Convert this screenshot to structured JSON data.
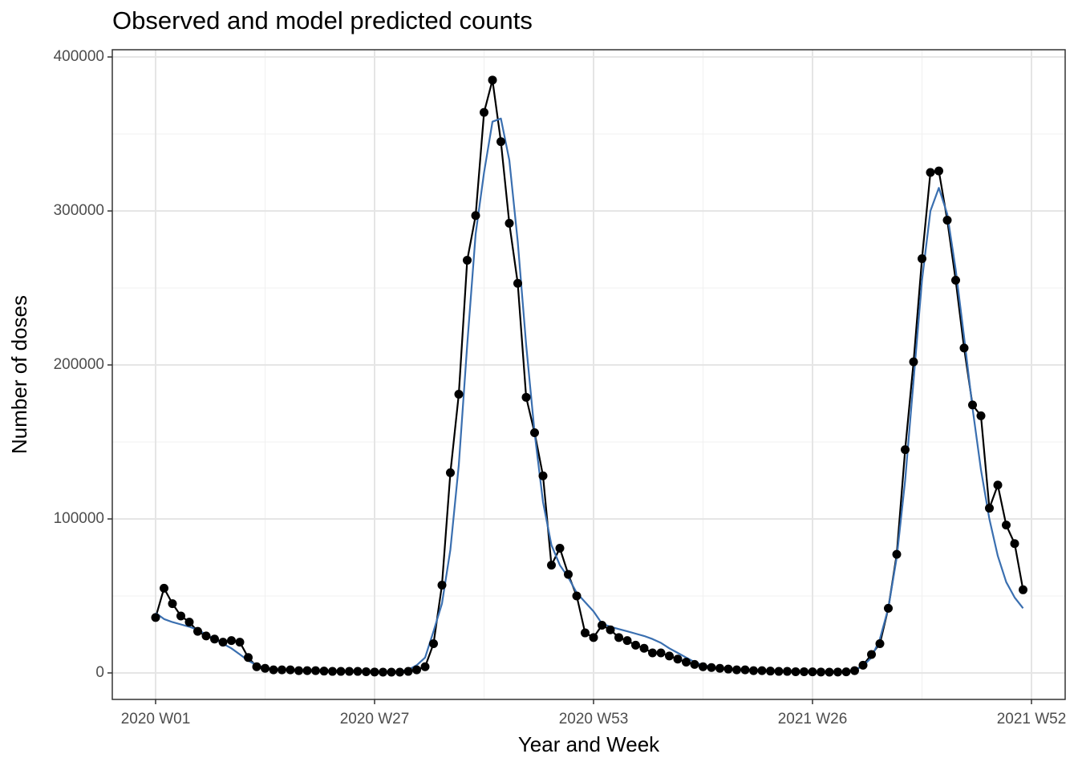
{
  "chart_data": {
    "type": "line",
    "title": "Observed and model predicted counts",
    "x_label": "Year and Week",
    "y_label": "Number of doses",
    "categories": [
      "2020 W01",
      null,
      null,
      null,
      null,
      null,
      null,
      null,
      null,
      null,
      null,
      null,
      null,
      null,
      null,
      null,
      null,
      null,
      null,
      null,
      null,
      null,
      null,
      null,
      null,
      null,
      "2020 W27",
      null,
      null,
      null,
      null,
      null,
      null,
      null,
      null,
      null,
      null,
      null,
      null,
      null,
      null,
      null,
      null,
      null,
      null,
      null,
      null,
      null,
      null,
      null,
      null,
      null,
      "2020 W53",
      null,
      null,
      null,
      null,
      null,
      null,
      null,
      null,
      null,
      null,
      null,
      null,
      null,
      null,
      null,
      null,
      null,
      null,
      null,
      null,
      null,
      null,
      null,
      null,
      null,
      "2021 W26",
      null,
      null,
      null,
      null,
      null,
      null,
      null,
      null,
      null,
      null,
      null,
      null,
      null,
      null,
      null,
      null,
      null,
      null,
      null,
      null,
      null,
      null,
      null,
      null,
      null,
      "2021 W52"
    ],
    "series": [
      {
        "color": "#000000",
        "markers": true,
        "values": [
          36000,
          55000,
          45000,
          37000,
          33000,
          27000,
          24000,
          22000,
          20000,
          21000,
          20000,
          10000,
          4000,
          3000,
          2000,
          2000,
          2000,
          1500,
          1500,
          1500,
          1200,
          1000,
          1000,
          1000,
          1000,
          800,
          600,
          500,
          500,
          500,
          1000,
          2000,
          4000,
          19000,
          57000,
          130000,
          181000,
          268000,
          297000,
          364000,
          385000,
          345000,
          292000,
          253000,
          179000,
          156000,
          128000,
          70000,
          81000,
          64000,
          50000,
          26000,
          23000,
          31000,
          28000,
          23000,
          21000,
          18000,
          16000,
          13000,
          13000,
          11000,
          9000,
          7000,
          5500,
          4000,
          3500,
          3000,
          2500,
          2000,
          2000,
          1500,
          1500,
          1200,
          1000,
          1000,
          800,
          800,
          700,
          600,
          500,
          600,
          700,
          1500,
          5000,
          12000,
          19000,
          42000,
          77000,
          145000,
          202000,
          269000,
          325000,
          326000,
          294000,
          255000,
          211000,
          174000,
          167000,
          107000,
          122000,
          96000,
          84000,
          54000,
          null
        ]
      },
      {
        "color": "#3a6fb0",
        "markers": false,
        "values": [
          39000,
          35000,
          33000,
          31500,
          30000,
          28000,
          25000,
          22000,
          19000,
          16000,
          12000,
          8000,
          5000,
          3500,
          2500,
          2000,
          1800,
          1600,
          1500,
          1400,
          1300,
          1200,
          1100,
          1000,
          900,
          800,
          700,
          600,
          600,
          1000,
          2000,
          5000,
          10000,
          27000,
          45000,
          80000,
          135000,
          213000,
          285000,
          325000,
          358000,
          360000,
          333000,
          280000,
          213000,
          156000,
          111000,
          83000,
          70000,
          62000,
          52000,
          46000,
          40000,
          32000,
          30000,
          28500,
          27000,
          25500,
          24000,
          22000,
          19500,
          16000,
          13000,
          10000,
          7000,
          5000,
          4000,
          3000,
          2500,
          2000,
          1700,
          1500,
          1200,
          1000,
          900,
          800,
          700,
          600,
          600,
          600,
          600,
          600,
          800,
          2000,
          4500,
          10000,
          22000,
          42000,
          75000,
          125000,
          190000,
          255000,
          300000,
          315000,
          298000,
          262000,
          218000,
          172000,
          132000,
          100000,
          76000,
          59000,
          49000,
          42000,
          null
        ]
      }
    ],
    "ylim": [
      -17200,
      404700
    ],
    "yticks": [
      0,
      100000,
      200000,
      300000,
      400000
    ],
    "grid": true
  }
}
